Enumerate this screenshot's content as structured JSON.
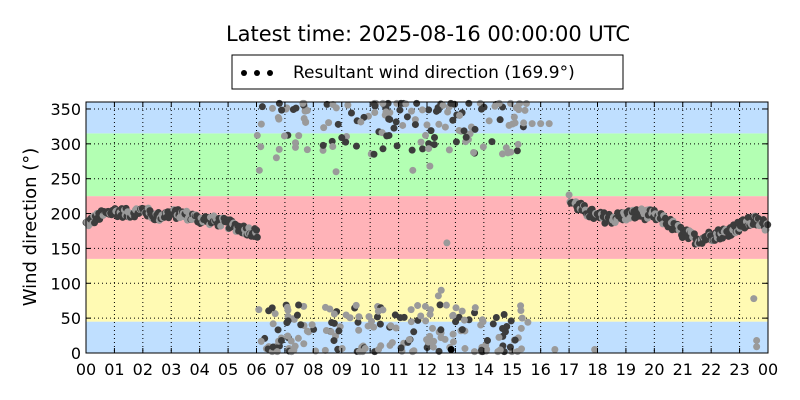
{
  "chart_data": {
    "type": "scatter",
    "title": "Latest time: 2025-08-16 00:00:00 UTC",
    "ylabel": "Wind direction (°)",
    "xlabel": "",
    "xlim": [
      0,
      24
    ],
    "ylim": [
      0,
      360
    ],
    "x_tick_labels": [
      "00",
      "01",
      "02",
      "03",
      "04",
      "05",
      "06",
      "07",
      "08",
      "09",
      "10",
      "11",
      "12",
      "13",
      "14",
      "15",
      "16",
      "17",
      "18",
      "19",
      "20",
      "21",
      "22",
      "23",
      "00"
    ],
    "y_ticks": [
      0,
      50,
      100,
      150,
      200,
      250,
      300,
      350
    ],
    "grid": true,
    "legend": {
      "label": "Resultant wind direction (169.9°)",
      "placement": "top-center"
    },
    "background_bands": [
      {
        "from": 0,
        "to": 45,
        "color": "#bfdfff"
      },
      {
        "from": 45,
        "to": 135,
        "color": "#fffab3"
      },
      {
        "from": 135,
        "to": 225,
        "color": "#ffb3b8"
      },
      {
        "from": 225,
        "to": 315,
        "color": "#b3ffb3"
      },
      {
        "from": 315,
        "to": 360,
        "color": "#bfdfff"
      }
    ],
    "colors": {
      "point_dark": "#3c3c3c",
      "point_light": "#9a9a9a"
    },
    "series": [
      {
        "hours": [
          0.0,
          0.5,
          1.0,
          1.5,
          2.0,
          2.5,
          3.0,
          3.5,
          4.0,
          4.5,
          5.0,
          5.5,
          6.0,
          17.0,
          17.5,
          18.0,
          18.5,
          19.0,
          19.5,
          20.0,
          20.5,
          21.0,
          21.5,
          22.0,
          22.5,
          23.0,
          23.5,
          24.0
        ],
        "directions": [
          185,
          197,
          203,
          200,
          205,
          195,
          200,
          198,
          192,
          190,
          185,
          178,
          172,
          220,
          205,
          195,
          193,
          197,
          200,
          197,
          187,
          172,
          163,
          168,
          173,
          182,
          190,
          182
        ]
      }
    ]
  }
}
